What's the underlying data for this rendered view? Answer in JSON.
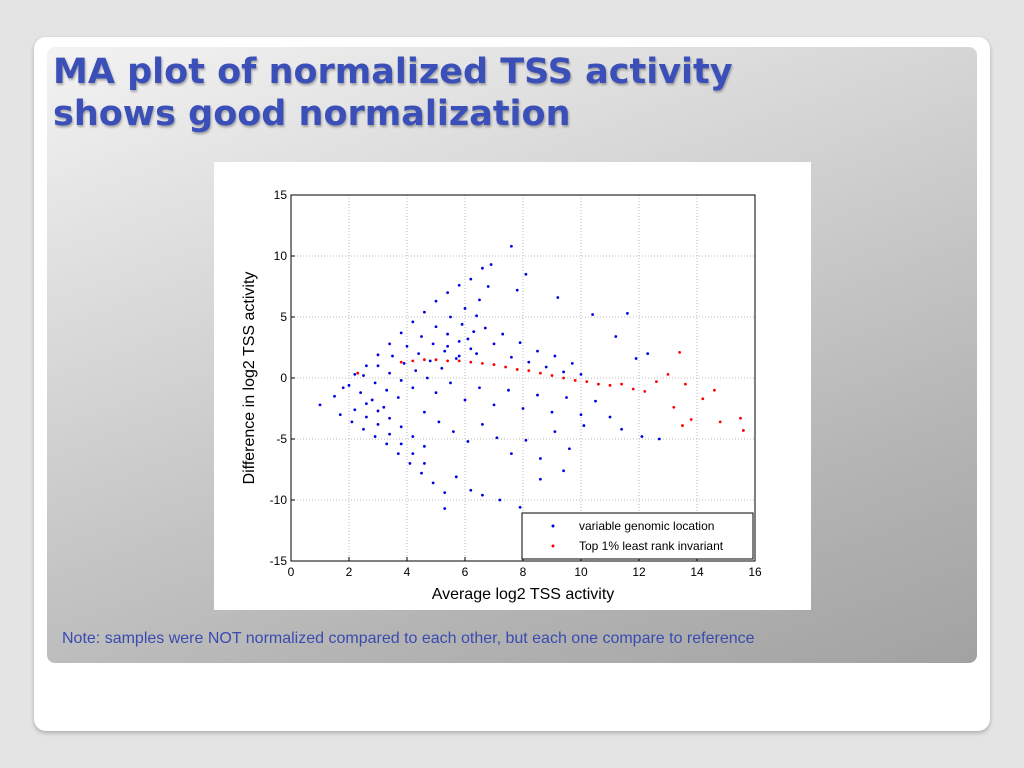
{
  "slide": {
    "title_line1": "MA plot of normalized TSS activity",
    "title_line2": "shows good normalization",
    "note": "Note: samples were NOT normalized compared to each other, but each one compare to reference"
  },
  "colors": {
    "title": "#3b4fb8",
    "series_blue": "#0000e0",
    "series_red": "#ff0000"
  },
  "chart_data": {
    "type": "scatter",
    "xlabel": "Average log2 TSS activity",
    "ylabel": "Difference in log2 TSS activity",
    "xlim": [
      0,
      16
    ],
    "ylim": [
      -15,
      15
    ],
    "xticks": [
      0,
      2,
      4,
      6,
      8,
      10,
      12,
      14,
      16
    ],
    "yticks": [
      -15,
      -10,
      -5,
      0,
      5,
      10,
      15
    ],
    "grid": true,
    "legend_position": "bottom-right",
    "series": [
      {
        "name": "variable genomic location",
        "color": "#0000e0",
        "points": [
          [
            1.0,
            -2.2
          ],
          [
            1.5,
            -1.5
          ],
          [
            1.8,
            -0.8
          ],
          [
            2.2,
            0.3
          ],
          [
            2.6,
            1.0
          ],
          [
            3.0,
            1.9
          ],
          [
            3.4,
            2.8
          ],
          [
            3.8,
            3.7
          ],
          [
            4.2,
            4.6
          ],
          [
            4.6,
            5.4
          ],
          [
            5.0,
            6.3
          ],
          [
            5.4,
            7.0
          ],
          [
            5.8,
            7.6
          ],
          [
            6.2,
            8.1
          ],
          [
            2.0,
            -0.6
          ],
          [
            2.5,
            0.2
          ],
          [
            3.0,
            1.0
          ],
          [
            3.5,
            1.8
          ],
          [
            4.0,
            2.6
          ],
          [
            4.5,
            3.4
          ],
          [
            5.0,
            4.2
          ],
          [
            5.5,
            5.0
          ],
          [
            6.0,
            5.7
          ],
          [
            6.5,
            6.4
          ],
          [
            2.4,
            -1.2
          ],
          [
            2.9,
            -0.4
          ],
          [
            3.4,
            0.4
          ],
          [
            3.9,
            1.2
          ],
          [
            4.4,
            2.0
          ],
          [
            4.9,
            2.8
          ],
          [
            5.4,
            3.6
          ],
          [
            5.9,
            4.4
          ],
          [
            6.4,
            5.1
          ],
          [
            2.8,
            -1.8
          ],
          [
            3.3,
            -1.0
          ],
          [
            3.8,
            -0.2
          ],
          [
            4.3,
            0.6
          ],
          [
            4.8,
            1.4
          ],
          [
            5.3,
            2.2
          ],
          [
            5.8,
            3.0
          ],
          [
            6.3,
            3.8
          ],
          [
            3.2,
            -2.4
          ],
          [
            3.7,
            -1.6
          ],
          [
            4.2,
            -0.8
          ],
          [
            4.7,
            0.0
          ],
          [
            5.2,
            0.8
          ],
          [
            5.7,
            1.6
          ],
          [
            6.2,
            2.4
          ],
          [
            1.7,
            -3.0
          ],
          [
            2.1,
            -3.6
          ],
          [
            2.5,
            -4.2
          ],
          [
            2.9,
            -4.8
          ],
          [
            3.3,
            -5.4
          ],
          [
            3.7,
            -6.2
          ],
          [
            4.1,
            -7.0
          ],
          [
            4.5,
            -7.8
          ],
          [
            4.9,
            -8.6
          ],
          [
            5.3,
            -9.4
          ],
          [
            2.2,
            -2.6
          ],
          [
            2.6,
            -3.2
          ],
          [
            3.0,
            -3.8
          ],
          [
            3.4,
            -4.6
          ],
          [
            3.8,
            -5.4
          ],
          [
            4.2,
            -6.2
          ],
          [
            4.6,
            -7.0
          ],
          [
            2.6,
            -2.1
          ],
          [
            3.0,
            -2.7
          ],
          [
            3.4,
            -3.3
          ],
          [
            3.8,
            -4.0
          ],
          [
            4.2,
            -4.8
          ],
          [
            4.6,
            -5.6
          ],
          [
            6.6,
            9.0
          ],
          [
            6.9,
            9.3
          ],
          [
            7.6,
            10.8
          ],
          [
            8.1,
            8.5
          ],
          [
            6.8,
            7.5
          ],
          [
            7.8,
            7.2
          ],
          [
            9.2,
            6.6
          ],
          [
            10.4,
            5.2
          ],
          [
            11.6,
            5.3
          ],
          [
            11.2,
            3.4
          ],
          [
            12.3,
            2.0
          ],
          [
            11.9,
            1.6
          ],
          [
            5.4,
            2.6
          ],
          [
            5.8,
            1.8
          ],
          [
            6.1,
            3.2
          ],
          [
            6.4,
            2.0
          ],
          [
            6.7,
            4.1
          ],
          [
            7.0,
            2.8
          ],
          [
            7.3,
            3.6
          ],
          [
            7.6,
            1.7
          ],
          [
            7.9,
            2.9
          ],
          [
            8.2,
            1.3
          ],
          [
            8.5,
            2.2
          ],
          [
            8.8,
            0.9
          ],
          [
            9.1,
            1.8
          ],
          [
            9.4,
            0.5
          ],
          [
            9.7,
            1.2
          ],
          [
            10.0,
            0.3
          ],
          [
            5.0,
            -1.2
          ],
          [
            5.5,
            -0.4
          ],
          [
            6.0,
            -1.8
          ],
          [
            6.5,
            -0.8
          ],
          [
            7.0,
            -2.2
          ],
          [
            7.5,
            -1.0
          ],
          [
            8.0,
            -2.5
          ],
          [
            8.5,
            -1.4
          ],
          [
            9.0,
            -2.8
          ],
          [
            9.5,
            -1.6
          ],
          [
            10.0,
            -3.0
          ],
          [
            10.5,
            -1.9
          ],
          [
            11.0,
            -3.2
          ],
          [
            4.6,
            -2.8
          ],
          [
            5.1,
            -3.6
          ],
          [
            5.6,
            -4.4
          ],
          [
            6.1,
            -5.2
          ],
          [
            6.6,
            -3.8
          ],
          [
            7.1,
            -4.9
          ],
          [
            7.6,
            -6.2
          ],
          [
            8.1,
            -5.1
          ],
          [
            8.6,
            -6.6
          ],
          [
            9.1,
            -4.4
          ],
          [
            9.6,
            -5.8
          ],
          [
            10.1,
            -3.9
          ],
          [
            11.4,
            -4.2
          ],
          [
            12.1,
            -4.8
          ],
          [
            12.7,
            -5.0
          ],
          [
            5.7,
            -8.1
          ],
          [
            6.2,
            -9.2
          ],
          [
            6.6,
            -9.6
          ],
          [
            7.2,
            -10.0
          ],
          [
            7.9,
            -10.6
          ],
          [
            5.3,
            -10.7
          ],
          [
            8.6,
            -8.3
          ],
          [
            9.4,
            -7.6
          ]
        ]
      },
      {
        "name": "Top 1% least rank invariant",
        "color": "#ff0000",
        "points": [
          [
            2.3,
            0.4
          ],
          [
            3.8,
            1.3
          ],
          [
            4.2,
            1.4
          ],
          [
            4.6,
            1.5
          ],
          [
            5.0,
            1.5
          ],
          [
            5.4,
            1.4
          ],
          [
            5.8,
            1.4
          ],
          [
            6.2,
            1.3
          ],
          [
            6.6,
            1.2
          ],
          [
            7.0,
            1.1
          ],
          [
            7.4,
            0.9
          ],
          [
            7.8,
            0.7
          ],
          [
            8.2,
            0.6
          ],
          [
            8.6,
            0.4
          ],
          [
            9.0,
            0.2
          ],
          [
            9.4,
            0.0
          ],
          [
            9.8,
            -0.2
          ],
          [
            10.2,
            -0.3
          ],
          [
            10.6,
            -0.5
          ],
          [
            11.0,
            -0.6
          ],
          [
            11.4,
            -0.5
          ],
          [
            11.8,
            -0.9
          ],
          [
            12.2,
            -1.1
          ],
          [
            12.6,
            -0.3
          ],
          [
            13.0,
            0.3
          ],
          [
            13.4,
            2.1
          ],
          [
            13.6,
            -0.5
          ],
          [
            13.2,
            -2.4
          ],
          [
            13.8,
            -3.4
          ],
          [
            14.2,
            -1.7
          ],
          [
            14.6,
            -1.0
          ],
          [
            14.8,
            -3.6
          ],
          [
            15.5,
            -3.3
          ],
          [
            15.6,
            -4.3
          ],
          [
            13.5,
            -3.9
          ]
        ]
      }
    ]
  }
}
